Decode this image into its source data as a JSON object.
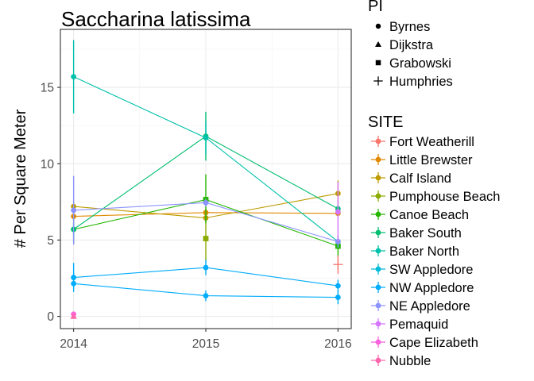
{
  "chart_data": {
    "type": "line",
    "title": "Saccharina latissima",
    "xlabel": "",
    "ylabel": "# Per Square Meter",
    "x": [
      2014,
      2015,
      2016
    ],
    "x_tick_labels": [
      "2014",
      "2015",
      "2016"
    ],
    "y_tick_labels": [
      "0",
      "5",
      "10",
      "15"
    ],
    "xlim": [
      2013.9,
      2016.1
    ],
    "ylim": [
      -0.8,
      18.8
    ],
    "grid": true,
    "legend_placement": "right",
    "pi_legend": {
      "title": "PI",
      "items": [
        {
          "label": "Byrnes",
          "shape": "circle"
        },
        {
          "label": "Dijkstra",
          "shape": "triangle"
        },
        {
          "label": "Grabowski",
          "shape": "square"
        },
        {
          "label": "Humphries",
          "shape": "plus"
        }
      ]
    },
    "site_legend": {
      "title": "SITE",
      "items": [
        {
          "label": "Fort Weatherill",
          "color": "#F8766D"
        },
        {
          "label": "Little Brewster",
          "color": "#E18A00"
        },
        {
          "label": "Calf Island",
          "color": "#BE9C00"
        },
        {
          "label": "Pumphouse Beach",
          "color": "#8CAB00"
        },
        {
          "label": "Canoe Beach",
          "color": "#24B700"
        },
        {
          "label": "Baker South",
          "color": "#00BE70"
        },
        {
          "label": "Baker North",
          "color": "#00C1AB"
        },
        {
          "label": "SW Appledore",
          "color": "#00BBDA"
        },
        {
          "label": "NW Appledore",
          "color": "#00ACFC"
        },
        {
          "label": "NE Appledore",
          "color": "#8B93FF"
        },
        {
          "label": "Pemaquid",
          "color": "#D575FE"
        },
        {
          "label": "Cape Elizabeth",
          "color": "#F962DD"
        },
        {
          "label": "Nubble",
          "color": "#FF65AC"
        }
      ]
    },
    "series": [
      {
        "name": "Little Brewster",
        "color": "#E18A00",
        "points": [
          {
            "x": 2014,
            "y": 6.55,
            "err": [
              6.3,
              6.8
            ],
            "shape": "circle"
          },
          {
            "x": 2015,
            "y": 6.8,
            "err": [
              6.55,
              7.05
            ],
            "shape": "circle"
          },
          {
            "x": 2016,
            "y": 6.75,
            "err": [
              6.5,
              7.0
            ],
            "shape": "circle"
          }
        ]
      },
      {
        "name": "Calf Island",
        "color": "#BE9C00",
        "points": [
          {
            "x": 2014,
            "y": 7.2,
            "err": [
              6.9,
              7.5
            ],
            "shape": "circle"
          },
          {
            "x": 2015,
            "y": 6.45,
            "err": [
              6.2,
              6.7
            ],
            "shape": "circle"
          },
          {
            "x": 2016,
            "y": 8.05,
            "err": [
              7.2,
              8.9
            ],
            "shape": "circle"
          }
        ]
      },
      {
        "name": "Pumphouse Beach",
        "color": "#8CAB00",
        "points": [
          {
            "x": 2015,
            "y": 5.1,
            "err": [
              3.6,
              6.6
            ],
            "shape": "square"
          }
        ]
      },
      {
        "name": "Canoe Beach",
        "color": "#24B700",
        "points": [
          {
            "x": 2014,
            "y": 5.7,
            "err": [
              4.8,
              6.6
            ],
            "shape": "circle"
          },
          {
            "x": 2015,
            "y": 7.65,
            "err": [
              6.1,
              9.3
            ],
            "shape": "square"
          },
          {
            "x": 2016,
            "y": 4.6,
            "err": [
              3.9,
              5.3
            ],
            "shape": "square"
          }
        ]
      },
      {
        "name": "Baker South",
        "color": "#00BE70",
        "points": [
          {
            "x": 2014,
            "y": 5.7,
            "err": [
              5.3,
              6.1
            ],
            "shape": "circle"
          },
          {
            "x": 2015,
            "y": 11.8,
            "err": [
              10.2,
              13.4
            ],
            "shape": "circle"
          },
          {
            "x": 2016,
            "y": 7.05,
            "err": [
              6.7,
              7.4
            ],
            "shape": "circle"
          }
        ]
      },
      {
        "name": "Baker North",
        "color": "#00C1AB",
        "points": [
          {
            "x": 2014,
            "y": 15.7,
            "err": [
              13.3,
              18.1
            ],
            "shape": "circle"
          },
          {
            "x": 2015,
            "y": 11.7,
            "err": [
              10.6,
              12.8
            ],
            "shape": "circle"
          },
          {
            "x": 2016,
            "y": 4.9,
            "err": [
              4.5,
              5.3
            ],
            "shape": "circle"
          }
        ]
      },
      {
        "name": "NW Appledore",
        "color": "#00ACFC",
        "points": [
          {
            "x": 2014,
            "y": 2.55,
            "err": [
              1.6,
              3.5
            ],
            "shape": "circle"
          },
          {
            "x": 2015,
            "y": 3.2,
            "err": [
              2.7,
              3.7
            ],
            "shape": "circle"
          },
          {
            "x": 2016,
            "y": 2.0,
            "err": [
              1.6,
              2.4
            ],
            "shape": "circle"
          }
        ]
      },
      {
        "name": "NW Appledore",
        "color": "#00ACFC",
        "points": [
          {
            "x": 2014,
            "y": 2.15,
            "err": [
              1.9,
              2.4
            ],
            "shape": "circle"
          },
          {
            "x": 2015,
            "y": 1.35,
            "err": [
              1.0,
              1.7
            ],
            "shape": "circle"
          },
          {
            "x": 2016,
            "y": 1.25,
            "err": [
              0.8,
              1.7
            ],
            "shape": "circle"
          }
        ]
      },
      {
        "name": "NE Appledore",
        "color": "#8B93FF",
        "points": [
          {
            "x": 2014,
            "y": 6.95,
            "err": [
              4.7,
              9.2
            ],
            "shape": "circle"
          },
          {
            "x": 2015,
            "y": 7.45,
            "err": [
              7.2,
              7.7
            ],
            "shape": "circle"
          },
          {
            "x": 2016,
            "y": 4.9,
            "err": [
              4.5,
              5.3
            ],
            "shape": "circle"
          }
        ]
      },
      {
        "name": "Pemaquid",
        "color": "#D575FE",
        "points": [
          {
            "x": 2016,
            "y": 6.85,
            "err": [
              4.9,
              8.8
            ],
            "shape": "circle"
          }
        ]
      },
      {
        "name": "Cape Elizabeth",
        "color": "#F962DD",
        "points": [
          {
            "x": 2014,
            "y": 0.15,
            "err": [
              0.1,
              0.2
            ],
            "shape": "circle"
          }
        ]
      },
      {
        "name": "Nubble",
        "color": "#FF65AC",
        "points": [
          {
            "x": 2014,
            "y": 0.0,
            "err": [
              0.0,
              0.0
            ],
            "shape": "triangle"
          }
        ]
      },
      {
        "name": "Fort Weatherill",
        "color": "#F8766D",
        "points": [
          {
            "x": 2016,
            "y": 3.4,
            "err": [
              2.8,
              4.0
            ],
            "shape": "plus"
          }
        ]
      }
    ]
  }
}
